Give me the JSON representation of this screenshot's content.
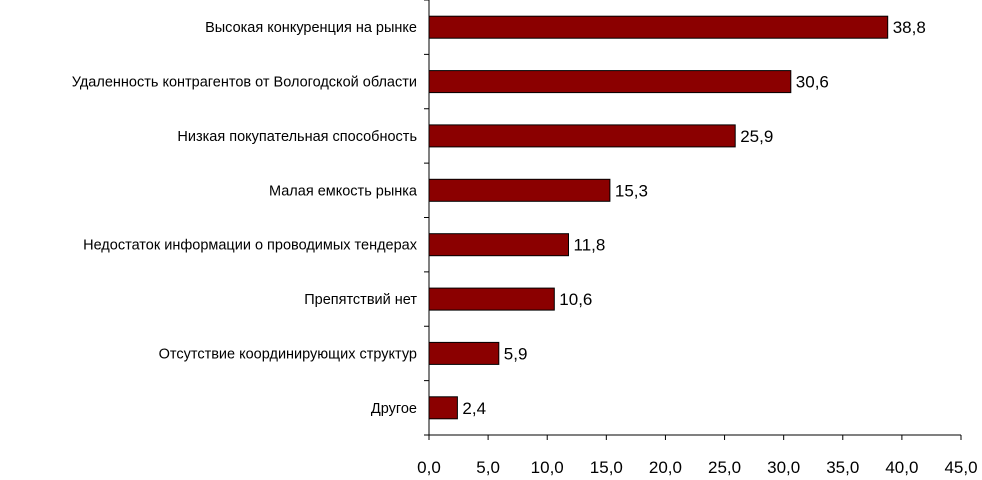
{
  "chart_data": {
    "type": "bar",
    "orientation": "horizontal",
    "categories": [
      "Высокая конкуренция на рынке",
      "Удаленность контрагентов от Вологодской области",
      "Низкая покупательная способность",
      "Малая емкость рынка",
      "Недостаток информации о проводимых тендерах",
      "Препятствий нет",
      "Отсутствие координирующих структур",
      "Другое"
    ],
    "values": [
      38.8,
      30.6,
      25.9,
      15.3,
      11.8,
      10.6,
      5.9,
      2.4
    ],
    "value_labels": [
      "38,8",
      "30,6",
      "25,9",
      "15,3",
      "11,8",
      "10,6",
      "5,9",
      "2,4"
    ],
    "xlim": [
      0,
      45
    ],
    "x_ticks": [
      0,
      5,
      10,
      15,
      20,
      25,
      30,
      35,
      40,
      45
    ],
    "x_tick_labels": [
      "0,0",
      "5,0",
      "10,0",
      "15,0",
      "20,0",
      "25,0",
      "30,0",
      "35,0",
      "40,0",
      "45,0"
    ],
    "grid": false,
    "legend": "none",
    "colors": {
      "bar_fill": "#8B0000",
      "bar_stroke": "#000000",
      "axis": "#000000"
    }
  }
}
